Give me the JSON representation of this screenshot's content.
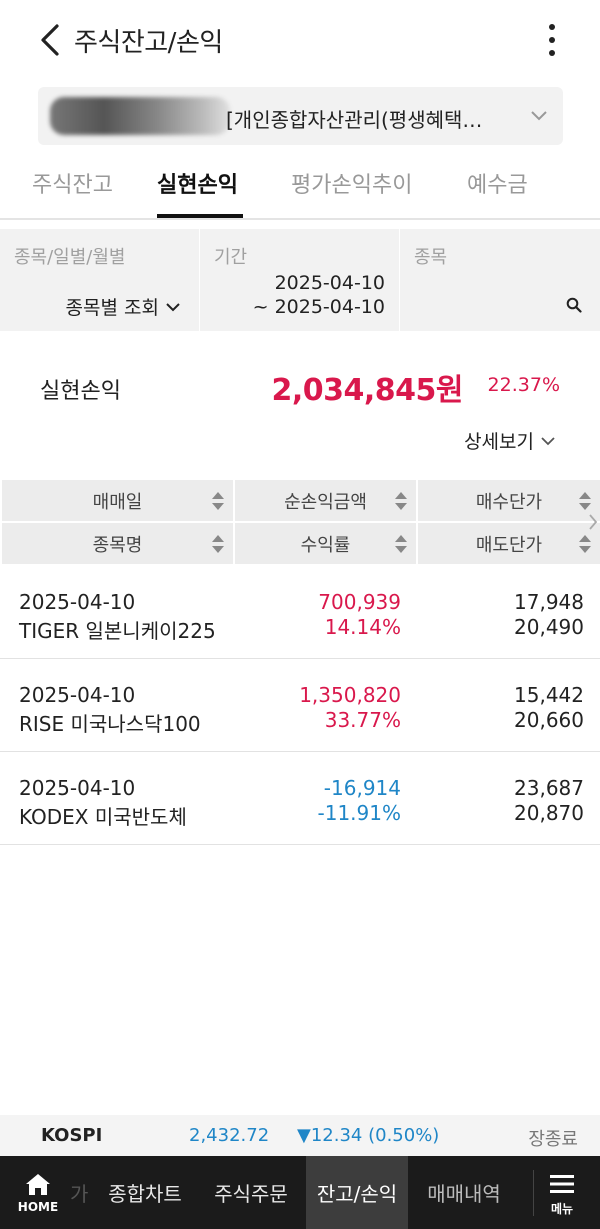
{
  "header": {
    "title": "주식잔고/손익"
  },
  "account": {
    "name": "[개인종합자산관리(평생혜택…"
  },
  "tabs": [
    {
      "label": "주식잔고"
    },
    {
      "label": "실현손익"
    },
    {
      "label": "평가손익추이"
    },
    {
      "label": "예수금"
    }
  ],
  "filter": {
    "type_label": "종목/일별/월별",
    "type_value": "종목별 조회",
    "period_label": "기간",
    "period_from": "2025-04-10",
    "period_to": "~ 2025-04-10",
    "stock_label": "종목"
  },
  "summary": {
    "label": "실현손익",
    "amount": "2,034,845원",
    "rate": "22.37%",
    "detail_label": "상세보기"
  },
  "table": {
    "headers": {
      "trade_date": "매매일",
      "net_profit": "순손익금액",
      "buy_price": "매수단가",
      "stock_name": "종목명",
      "return_rate": "수익률",
      "sell_price": "매도단가"
    },
    "rows": [
      {
        "date": "2025-04-10",
        "name": "TIGER 일본니케이225",
        "amount": "700,939",
        "rate": "14.14%",
        "buy": "17,948",
        "sell": "20,490",
        "direction": "up"
      },
      {
        "date": "2025-04-10",
        "name": "RISE 미국나스닥100",
        "amount": "1,350,820",
        "rate": "33.77%",
        "buy": "15,442",
        "sell": "20,660",
        "direction": "up"
      },
      {
        "date": "2025-04-10",
        "name": "KODEX 미국반도체",
        "amount": "-16,914",
        "rate": "-11.91%",
        "buy": "23,687",
        "sell": "20,870",
        "direction": "down"
      }
    ]
  },
  "index_bar": {
    "name": "KOSPI",
    "value": "2,432.72",
    "change": "▼12.34 (0.50%)",
    "status": "장종료"
  },
  "bottom_nav": {
    "home": "HOME",
    "faded_prev": "가",
    "items": [
      "종합차트",
      "주식주문",
      "잔고/손익",
      "매매내역"
    ],
    "menu": "메뉴"
  },
  "colors": {
    "up": "#d9184c",
    "down": "#1f86c7",
    "nav_bg": "#1b1b1b"
  }
}
